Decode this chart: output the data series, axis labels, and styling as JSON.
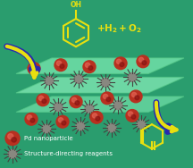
{
  "bg_color": "#2a9d6e",
  "pd_label": "Pd nanoparticle",
  "sdr_label": "Structure-directing reagents",
  "text_color": "#e8e010",
  "white_text": "#ffffff",
  "figsize": [
    2.16,
    1.88
  ],
  "dpi": 100,
  "reactor_color": "#70e8a0",
  "reactor_edge": "#50c878",
  "pd_color": "#b83020",
  "pd_highlight": "#e06050",
  "pd_dark": "#801010",
  "sdr_core": "#888880",
  "sdr_spike": "#444440",
  "arrow_yellow": "#e8e010",
  "arrow_blue": "#2828b0",
  "phenol_color": "#e8e010",
  "product_color": "#e8e010"
}
